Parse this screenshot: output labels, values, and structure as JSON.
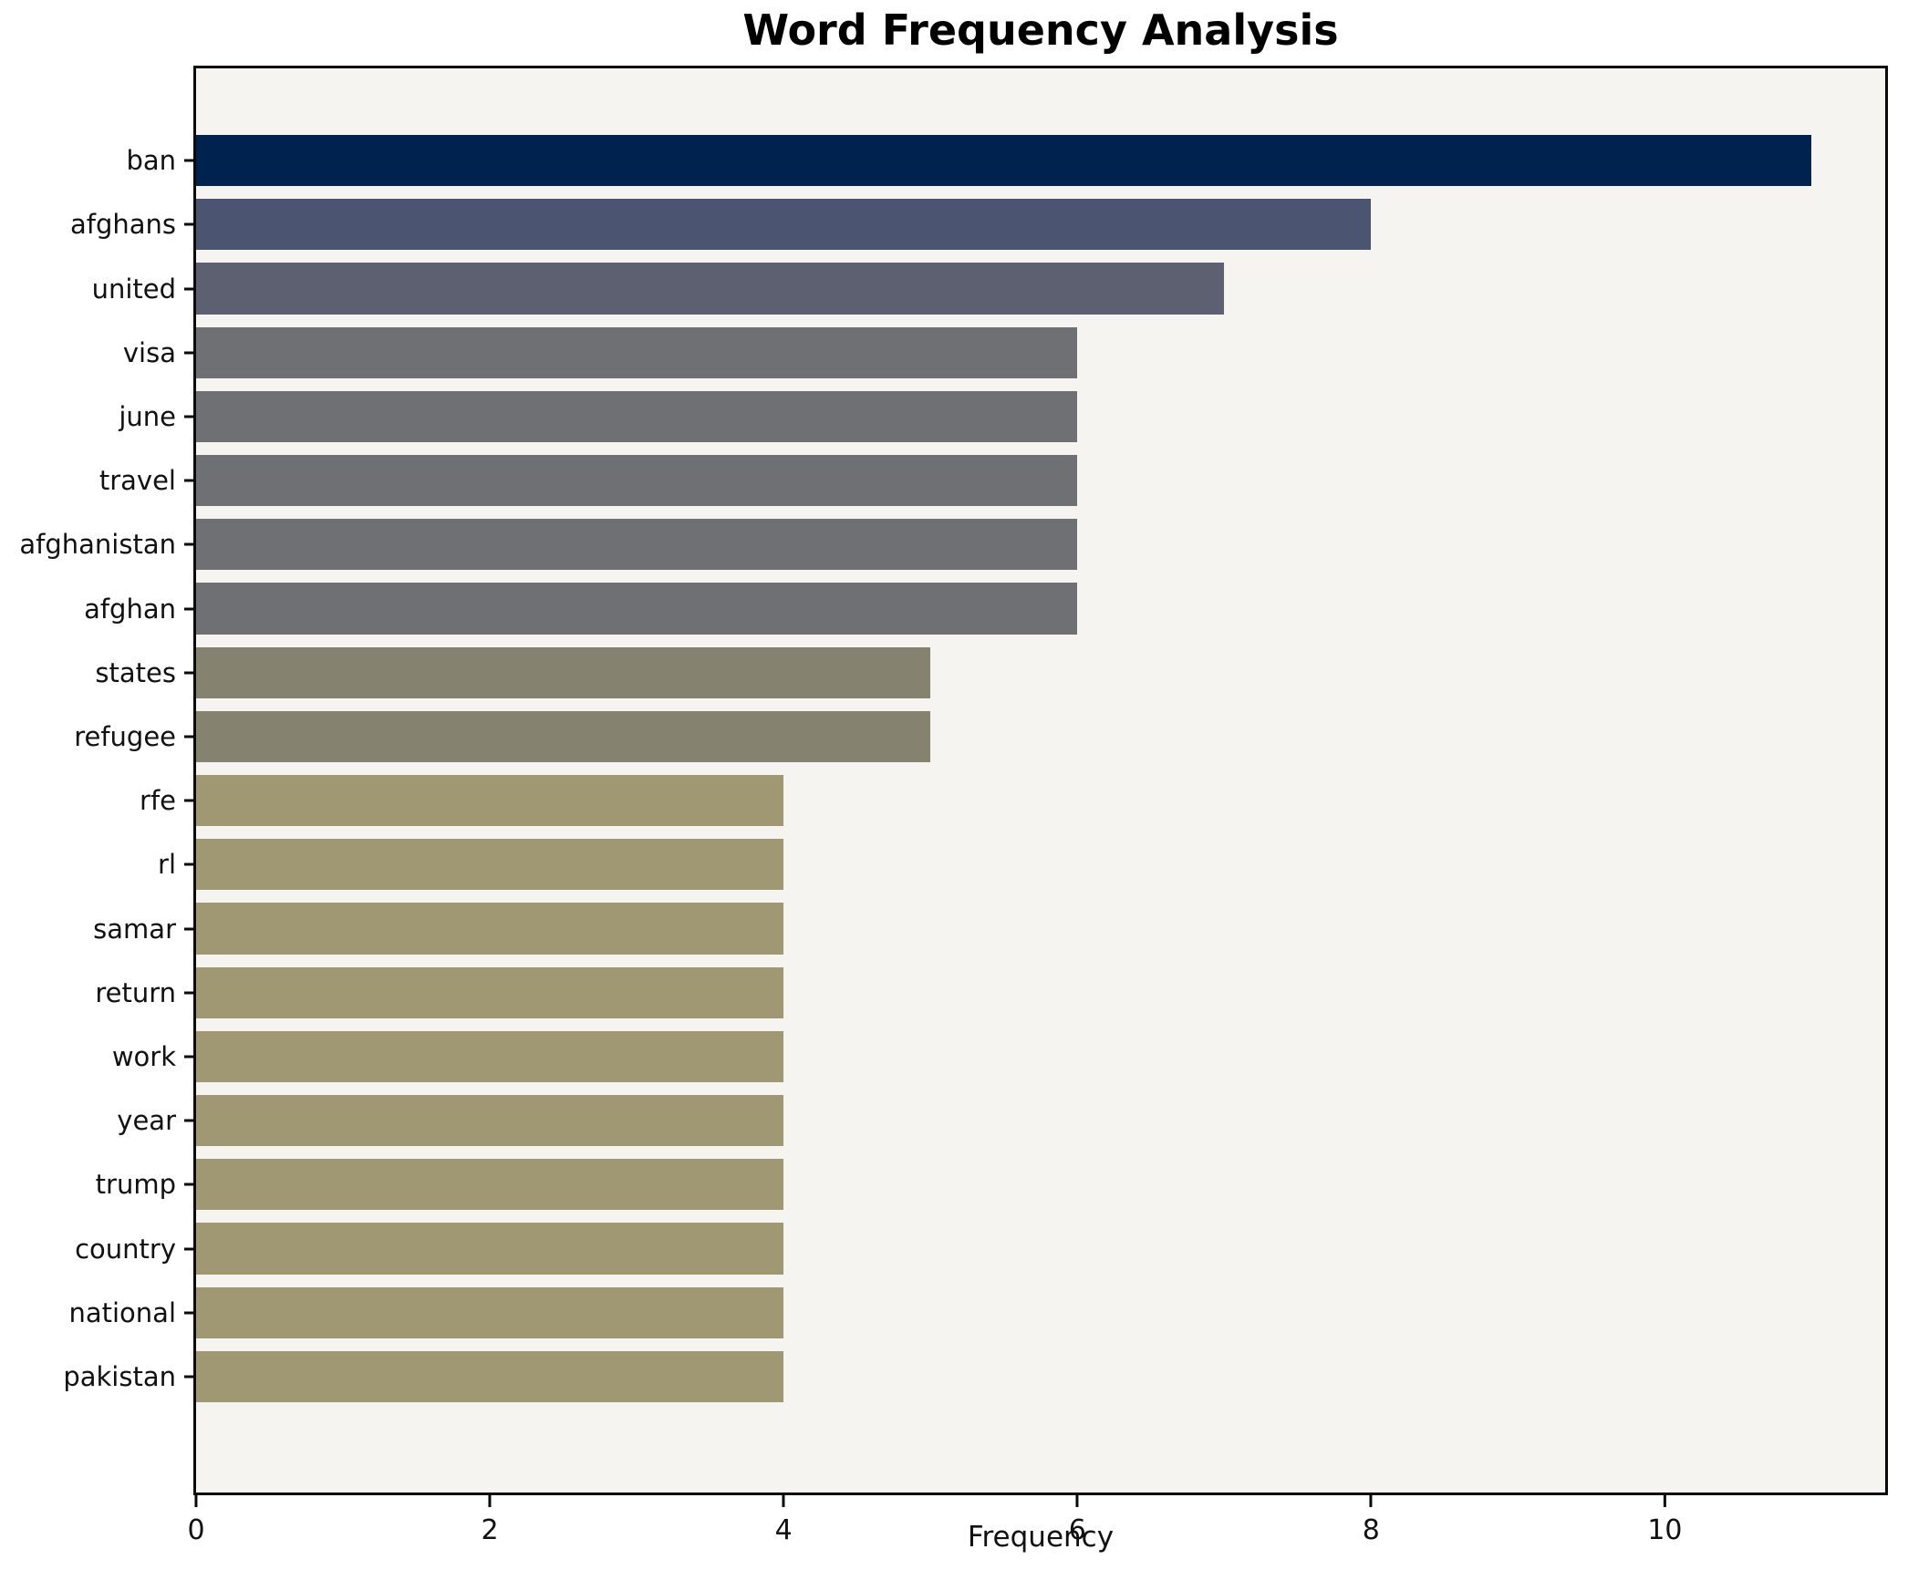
{
  "title": "Word Frequency Analysis",
  "axes": {
    "xlabel": "Frequency"
  },
  "colors": {
    "figure_background": "#ffffff",
    "plot_background": "#f5f4f1",
    "spine": "#0a0a0a",
    "text": "#111111"
  },
  "chart_data": {
    "type": "bar",
    "orientation": "horizontal",
    "title": "Word Frequency Analysis",
    "xlabel": "Frequency",
    "ylabel": "",
    "categories": [
      "ban",
      "afghans",
      "united",
      "visa",
      "june",
      "travel",
      "afghanistan",
      "afghan",
      "states",
      "refugee",
      "rfe",
      "rl",
      "samar",
      "return",
      "work",
      "year",
      "trump",
      "country",
      "national",
      "pakistan"
    ],
    "values": [
      11,
      8,
      7,
      6,
      6,
      6,
      6,
      6,
      5,
      5,
      4,
      4,
      4,
      4,
      4,
      4,
      4,
      4,
      4,
      4
    ],
    "bar_colors": [
      "#00224e",
      "#4b5471",
      "#5c6070",
      "#6f7073",
      "#6f7073",
      "#6f7073",
      "#6f7073",
      "#6f7073",
      "#85836f",
      "#85836f",
      "#a09873",
      "#a09873",
      "#a09873",
      "#a09873",
      "#a09873",
      "#a09873",
      "#a09873",
      "#a09873",
      "#a09873",
      "#a09873"
    ],
    "xlim": [
      0,
      11.5
    ],
    "xticks": [
      0,
      2,
      4,
      6,
      8,
      10
    ],
    "grid": false,
    "legend": null
  }
}
